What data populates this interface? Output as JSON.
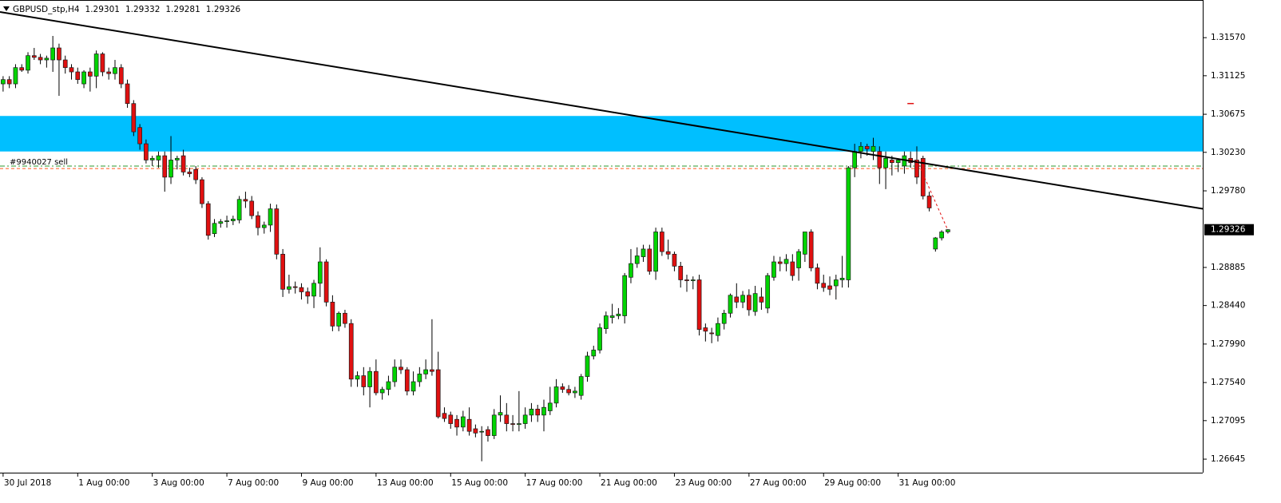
{
  "chart_data": {
    "type": "candlestick",
    "symbol": "GBPUSD_stp,H4",
    "ohlc": [
      1.29301,
      1.29332,
      1.29281,
      1.29326
    ],
    "last_price": 1.29326,
    "up_color": "#00d400",
    "down_color": "#e01010",
    "xlim": [
      -0.5,
      193
    ],
    "ylim": [
      1.26487,
      1.3201
    ],
    "yticks": [
      {
        "value": 1.3157,
        "label": "1.31570"
      },
      1.31125,
      1.30675,
      {
        "value": 1.3023,
        "label": "1.30230"
      },
      {
        "value": 1.2978,
        "label": "1.29780"
      },
      1.28885,
      {
        "value": 1.2844,
        "label": "1.28440"
      },
      {
        "value": 1.2799,
        "label": "1.27990"
      },
      {
        "value": 1.2754,
        "label": "1.27540"
      },
      1.27095,
      1.26645
    ],
    "xticks": [
      {
        "value": 0,
        "label": "30 Jul 2018"
      },
      {
        "value": 12,
        "label": "1 Aug 00:00"
      },
      {
        "value": 24,
        "label": "3 Aug 00:00"
      },
      {
        "value": 36,
        "label": "7 Aug 00:00"
      },
      {
        "value": 48,
        "label": "9 Aug 00:00"
      },
      {
        "value": 60,
        "label": "13 Aug 00:00"
      },
      {
        "value": 72,
        "label": "15 Aug 00:00"
      },
      {
        "value": 84,
        "label": "17 Aug 00:00"
      },
      {
        "value": 96,
        "label": "21 Aug 00:00"
      },
      {
        "value": 108,
        "label": "23 Aug 00:00"
      },
      {
        "value": 120,
        "label": "27 Aug 00:00"
      },
      {
        "value": 132,
        "label": "29 Aug 00:00"
      },
      {
        "value": 144,
        "label": "31 Aug 00:00"
      }
    ],
    "zone": {
      "from": 1.3024,
      "to": 1.30655,
      "color": "#00bfff"
    },
    "trendline": {
      "x": [
        -0.5,
        193
      ],
      "values": [
        1.3187,
        1.2957
      ],
      "color": "#000000"
    },
    "order": {
      "label": "#9940027 sell"
    },
    "levels": [
      {
        "value": 1.3007,
        "color": "#2e9a2e"
      },
      {
        "value": 1.3004,
        "color": "#ff5a1f"
      }
    ],
    "marker": {
      "x": 146,
      "value": 1.308,
      "color": "#e01010"
    },
    "trade_path": {
      "x": [
        147,
        152
      ],
      "values": [
        1.3014,
        1.2932
      ],
      "color": "#e01010"
    },
    "candles": [
      [
        1.3103,
        1.3112,
        1.3094,
        1.3108
      ],
      [
        1.3108,
        1.3112,
        1.3098,
        1.3103
      ],
      [
        1.3103,
        1.3126,
        1.3098,
        1.3122
      ],
      [
        1.3122,
        1.3126,
        1.3117,
        1.3119
      ],
      [
        1.3119,
        1.314,
        1.3115,
        1.3136
      ],
      [
        1.3136,
        1.3145,
        1.3131,
        1.3134
      ],
      [
        1.3134,
        1.3138,
        1.3126,
        1.3131
      ],
      [
        1.3131,
        1.3136,
        1.3122,
        1.3133
      ],
      [
        1.3131,
        1.3159,
        1.3117,
        1.3145
      ],
      [
        1.3145,
        1.315,
        1.3089,
        1.3131
      ],
      [
        1.3131,
        1.3136,
        1.3115,
        1.3122
      ],
      [
        1.3122,
        1.3126,
        1.3108,
        1.3117
      ],
      [
        1.3117,
        1.3122,
        1.3103,
        1.3108
      ],
      [
        1.3103,
        1.3119,
        1.3098,
        1.3117
      ],
      [
        1.3117,
        1.3122,
        1.3094,
        1.3112
      ],
      [
        1.3112,
        1.3142,
        1.3098,
        1.3138
      ],
      [
        1.3138,
        1.314,
        1.3112,
        1.3117
      ],
      [
        1.3117,
        1.3122,
        1.3108,
        1.3115
      ],
      [
        1.3115,
        1.3131,
        1.3108,
        1.3122
      ],
      [
        1.3122,
        1.3126,
        1.3098,
        1.3103
      ],
      [
        1.3103,
        1.3108,
        1.3075,
        1.308
      ],
      [
        1.308,
        1.3084,
        1.3042,
        1.3047
      ],
      [
        1.3052,
        1.3056,
        1.3026,
        1.3033
      ],
      [
        1.3033,
        1.3038,
        1.301,
        1.3014
      ],
      [
        1.3014,
        1.3019,
        1.3007,
        1.3016
      ],
      [
        1.3014,
        1.3024,
        1.3005,
        1.3019
      ],
      [
        1.3019,
        1.3024,
        1.2977,
        1.2994
      ],
      [
        1.2994,
        1.3042,
        1.2986,
        1.3014
      ],
      [
        1.3014,
        1.3019,
        1.3003,
        1.3016
      ],
      [
        1.3019,
        1.3026,
        1.2996,
        1.3
      ],
      [
        1.3,
        1.3005,
        1.2994,
        1.2998
      ],
      [
        1.3003,
        1.3007,
        1.2986,
        1.2991
      ],
      [
        1.2991,
        1.2994,
        1.2958,
        1.2963
      ],
      [
        1.2963,
        1.2966,
        1.2921,
        1.2926
      ],
      [
        1.2928,
        1.2945,
        1.2924,
        1.294
      ],
      [
        1.294,
        1.2945,
        1.2935,
        1.2942
      ],
      [
        1.2942,
        1.2949,
        1.2935,
        1.2943
      ],
      [
        1.2943,
        1.2949,
        1.2938,
        1.2945
      ],
      [
        1.2944,
        1.2972,
        1.294,
        1.2968
      ],
      [
        1.2968,
        1.2977,
        1.2958,
        1.2966
      ],
      [
        1.2966,
        1.2972,
        1.2945,
        1.2949
      ],
      [
        1.2949,
        1.2954,
        1.2926,
        1.2935
      ],
      [
        1.2935,
        1.2942,
        1.2928,
        1.2938
      ],
      [
        1.2938,
        1.2963,
        1.293,
        1.2957
      ],
      [
        1.2957,
        1.2962,
        1.2898,
        1.2904
      ],
      [
        1.2904,
        1.291,
        1.2854,
        1.2863
      ],
      [
        1.2863,
        1.288,
        1.2858,
        1.2866
      ],
      [
        1.2866,
        1.2872,
        1.2858,
        1.2865
      ],
      [
        1.2865,
        1.287,
        1.2851,
        1.286
      ],
      [
        1.286,
        1.2865,
        1.2846,
        1.2855
      ],
      [
        1.2855,
        1.2874,
        1.2841,
        1.287
      ],
      [
        1.287,
        1.2912,
        1.2854,
        1.2895
      ],
      [
        1.2895,
        1.2898,
        1.2843,
        1.2848
      ],
      [
        1.2848,
        1.2856,
        1.2814,
        1.282
      ],
      [
        1.282,
        1.2837,
        1.2814,
        1.2835
      ],
      [
        1.2835,
        1.2839,
        1.2818,
        1.2823
      ],
      [
        1.2823,
        1.2828,
        1.2749,
        1.2758
      ],
      [
        1.2758,
        1.2767,
        1.2749,
        1.2762
      ],
      [
        1.2762,
        1.2772,
        1.2739,
        1.2749
      ],
      [
        1.2749,
        1.2772,
        1.2725,
        1.2767
      ],
      [
        1.2767,
        1.2781,
        1.2739,
        1.2742
      ],
      [
        1.2742,
        1.2749,
        1.2734,
        1.2746
      ],
      [
        1.2746,
        1.2762,
        1.2739,
        1.2755
      ],
      [
        1.2755,
        1.2781,
        1.2749,
        1.2772
      ],
      [
        1.2772,
        1.2781,
        1.2764,
        1.2769
      ],
      [
        1.2769,
        1.2772,
        1.2739,
        1.2744
      ],
      [
        1.2744,
        1.2767,
        1.2739,
        1.2755
      ],
      [
        1.2755,
        1.2772,
        1.2749,
        1.2764
      ],
      [
        1.2764,
        1.2781,
        1.2758,
        1.2769
      ],
      [
        1.2769,
        1.2828,
        1.2762,
        1.2767
      ],
      [
        1.2769,
        1.279,
        1.2712,
        1.2714
      ],
      [
        1.2718,
        1.2725,
        1.2708,
        1.2712
      ],
      [
        1.2716,
        1.272,
        1.27,
        1.2706
      ],
      [
        1.2711,
        1.2716,
        1.2692,
        1.2702
      ],
      [
        1.2702,
        1.2721,
        1.2697,
        1.2714
      ],
      [
        1.2711,
        1.2725,
        1.2692,
        1.2697
      ],
      [
        1.27,
        1.2705,
        1.269,
        1.2695
      ],
      [
        1.2697,
        1.2703,
        1.2662,
        1.2697
      ],
      [
        1.2699,
        1.2703,
        1.2685,
        1.2692
      ],
      [
        1.2692,
        1.2723,
        1.2688,
        1.2716
      ],
      [
        1.2716,
        1.2739,
        1.2708,
        1.2719
      ],
      [
        1.2716,
        1.273,
        1.2697,
        1.2706
      ],
      [
        1.2706,
        1.2716,
        1.2697,
        1.2705
      ],
      [
        1.2705,
        1.2744,
        1.2697,
        1.2706
      ],
      [
        1.2706,
        1.2725,
        1.27,
        1.2716
      ],
      [
        1.2716,
        1.273,
        1.2708,
        1.2723
      ],
      [
        1.2723,
        1.2728,
        1.2708,
        1.2716
      ],
      [
        1.2716,
        1.2734,
        1.2697,
        1.2725
      ],
      [
        1.2721,
        1.2749,
        1.2716,
        1.273
      ],
      [
        1.273,
        1.2758,
        1.2725,
        1.2749
      ],
      [
        1.2749,
        1.2753,
        1.2742,
        1.2746
      ],
      [
        1.2746,
        1.2751,
        1.2739,
        1.2742
      ],
      [
        1.2742,
        1.2749,
        1.2736,
        1.2744
      ],
      [
        1.2739,
        1.2764,
        1.2734,
        1.2761
      ],
      [
        1.2761,
        1.279,
        1.2755,
        1.2785
      ],
      [
        1.2785,
        1.2797,
        1.2781,
        1.2792
      ],
      [
        1.2792,
        1.2823,
        1.2788,
        1.2818
      ],
      [
        1.2817,
        1.2837,
        1.2811,
        1.2832
      ],
      [
        1.283,
        1.2846,
        1.2823,
        1.2832
      ],
      [
        1.2832,
        1.2841,
        1.2828,
        1.2834
      ],
      [
        1.2832,
        1.2882,
        1.2823,
        1.2879
      ],
      [
        1.2877,
        1.291,
        1.287,
        1.2893
      ],
      [
        1.2893,
        1.2912,
        1.2888,
        1.2902
      ],
      [
        1.2901,
        1.2915,
        1.2895,
        1.291
      ],
      [
        1.291,
        1.2915,
        1.288,
        1.2884
      ],
      [
        1.2884,
        1.2935,
        1.2874,
        1.293
      ],
      [
        1.293,
        1.2935,
        1.2902,
        1.2907
      ],
      [
        1.2907,
        1.2921,
        1.2898,
        1.2904
      ],
      [
        1.2904,
        1.2907,
        1.2884,
        1.289
      ],
      [
        1.289,
        1.2895,
        1.2865,
        1.2874
      ],
      [
        1.2874,
        1.288,
        1.286,
        1.2873
      ],
      [
        1.2873,
        1.2878,
        1.2863,
        1.2874
      ],
      [
        1.2874,
        1.288,
        1.2809,
        1.2816
      ],
      [
        1.2818,
        1.2823,
        1.2802,
        1.2814
      ],
      [
        1.2812,
        1.2818,
        1.28,
        1.2811
      ],
      [
        1.2809,
        1.283,
        1.2802,
        1.2823
      ],
      [
        1.2823,
        1.2839,
        1.2816,
        1.2835
      ],
      [
        1.2835,
        1.2858,
        1.283,
        1.2856
      ],
      [
        1.2854,
        1.287,
        1.2841,
        1.2848
      ],
      [
        1.2848,
        1.2861,
        1.2841,
        1.2856
      ],
      [
        1.2856,
        1.2863,
        1.2832,
        1.2839
      ],
      [
        1.2837,
        1.2867,
        1.2832,
        1.2858
      ],
      [
        1.2854,
        1.2865,
        1.2839,
        1.2848
      ],
      [
        1.2841,
        1.2882,
        1.2835,
        1.2879
      ],
      [
        1.2877,
        1.2902,
        1.2873,
        1.2895
      ],
      [
        1.2895,
        1.2901,
        1.2884,
        1.2893
      ],
      [
        1.2893,
        1.2904,
        1.2884,
        1.2898
      ],
      [
        1.2895,
        1.2904,
        1.2873,
        1.2879
      ],
      [
        1.2888,
        1.291,
        1.2873,
        1.2907
      ],
      [
        1.2904,
        1.293,
        1.2895,
        1.293
      ],
      [
        1.293,
        1.2933,
        1.2884,
        1.2888
      ],
      [
        1.2888,
        1.2893,
        1.2863,
        1.287
      ],
      [
        1.287,
        1.288,
        1.286,
        1.2865
      ],
      [
        1.2867,
        1.2878,
        1.2856,
        1.2863
      ],
      [
        1.2867,
        1.288,
        1.2851,
        1.2874
      ],
      [
        1.2874,
        1.2902,
        1.2865,
        1.2876
      ],
      [
        1.2874,
        1.3007,
        1.2865,
        1.3005
      ],
      [
        1.3005,
        1.3033,
        1.2994,
        1.3024
      ],
      [
        1.3024,
        1.3035,
        1.3016,
        1.303
      ],
      [
        1.303,
        1.3033,
        1.3019,
        1.3027
      ],
      [
        1.3024,
        1.304,
        1.3014,
        1.303
      ],
      [
        1.3024,
        1.303,
        1.2986,
        1.3005
      ],
      [
        1.3005,
        1.3024,
        1.298,
        1.3016
      ],
      [
        1.3014,
        1.3019,
        1.2996,
        1.3011
      ],
      [
        1.3011,
        1.3016,
        1.3,
        1.3014
      ],
      [
        1.3007,
        1.3024,
        1.2998,
        1.3019
      ],
      [
        1.3016,
        1.3024,
        1.3005,
        1.3011
      ],
      [
        1.3014,
        1.303,
        1.2986,
        1.2994
      ],
      [
        1.3016,
        1.3019,
        1.2968,
        1.2972
      ],
      [
        1.2972,
        1.2977,
        1.2954,
        1.2958
      ],
      [
        1.291,
        1.2924,
        1.2907,
        1.2923
      ],
      [
        1.2923,
        1.2932,
        1.292,
        1.293
      ],
      [
        1.29301,
        1.29332,
        1.29281,
        1.29326
      ]
    ]
  }
}
